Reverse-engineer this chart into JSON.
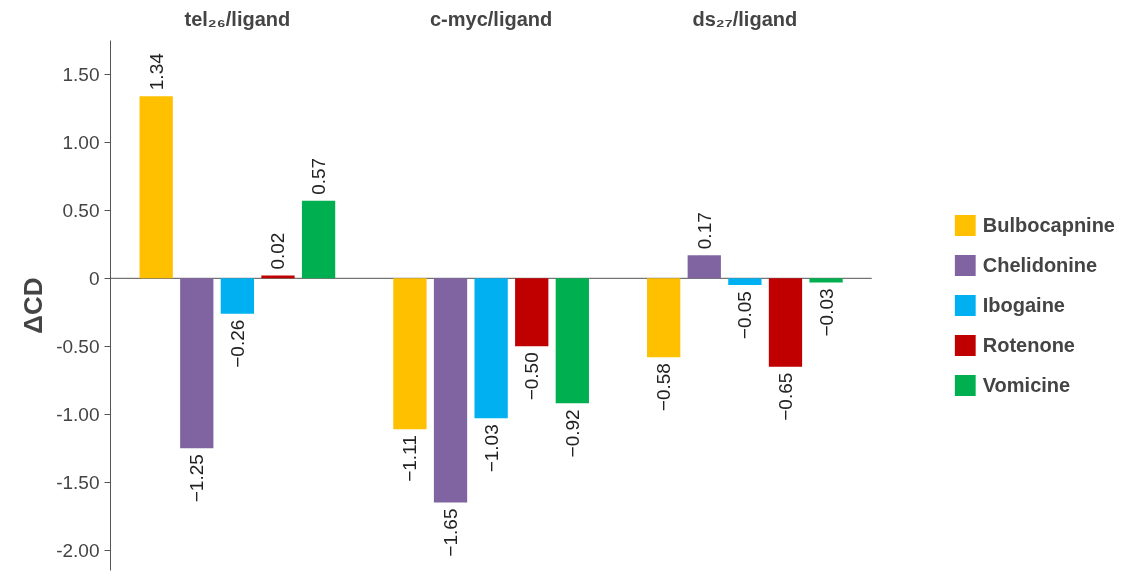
{
  "chart_data": {
    "type": "bar",
    "categories": [
      "tel₂₆/ligand",
      "c-myc/ligand",
      "ds₂₇/ligand"
    ],
    "ylabel": "ΔCD",
    "series": [
      {
        "name": "Bulbocapnine",
        "color": "#ffc000",
        "values": [
          1.34,
          -1.11,
          -0.58
        ],
        "value_labels": [
          "1.34",
          "−1.11",
          "−0.58"
        ]
      },
      {
        "name": "Chelidonine",
        "color": "#8064a2",
        "values": [
          -1.25,
          -1.65,
          0.17
        ],
        "value_labels": [
          "−1.25",
          "−1.65",
          "0.17"
        ]
      },
      {
        "name": "Ibogaine",
        "color": "#00b0f0",
        "values": [
          -0.26,
          -1.03,
          -0.05
        ],
        "value_labels": [
          "−0.26",
          "−1.03",
          "−0.05"
        ]
      },
      {
        "name": "Rotenone",
        "color": "#c00000",
        "values": [
          0.02,
          -0.5,
          -0.65
        ],
        "value_labels": [
          "0.02",
          "−0.50",
          "−0.65"
        ]
      },
      {
        "name": "Vomicine",
        "color": "#00b050",
        "values": [
          0.57,
          -0.92,
          -0.03
        ],
        "value_labels": [
          "0.57",
          "−0.92",
          "−0.03"
        ]
      }
    ],
    "ylim": [
      -2.15,
      1.75
    ],
    "ref_lines": [
      {
        "axis": "y",
        "value": 0,
        "color": "#555555"
      }
    ],
    "yticks": [
      {
        "value": 1.5,
        "label": "1.50"
      },
      {
        "value": 1.0,
        "label": "1.00"
      },
      {
        "value": 0.5,
        "label": "0.50"
      },
      {
        "value": 0,
        "label": "0"
      },
      {
        "value": -0.5,
        "label": "-0.50"
      },
      {
        "value": -1.0,
        "label": "-1.00"
      },
      {
        "value": -1.5,
        "label": "-1.50"
      },
      {
        "value": -2.0,
        "label": "-2.00"
      }
    ],
    "grid": false,
    "legend": "right"
  }
}
